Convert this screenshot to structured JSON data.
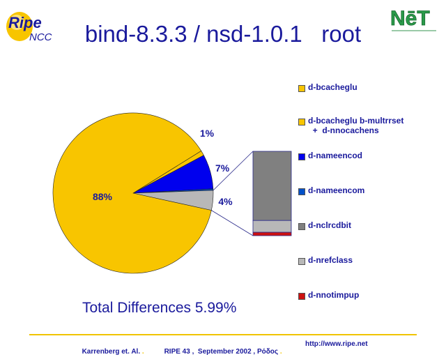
{
  "title": "bind-8.3.3 / nsd-1.0.1   root",
  "logos": {
    "ripe_text": "Ripe",
    "ncc_text": "NCC",
    "net_text": "NēT"
  },
  "colors": {
    "title": "#1a1a9c",
    "d-bcacheglu": "#f8c500",
    "d-bcacheglu-b-multrrset": "#f8c500",
    "d-nameencod": "#0000ee",
    "d-nameencom": "#0050c8",
    "d-nclrcdbit": "#808080",
    "d-nrefclass": "#b8b8b8",
    "d-nnotimpup": "#cc1111"
  },
  "legend": [
    {
      "label": "d-bcacheglu",
      "color": "#f8c500"
    },
    {
      "label": "d-bcacheglu b-multrrset\n  +  d-nnocachens",
      "color": "#f8c500"
    },
    {
      "label": "d-nameencod",
      "color": "#0000ee"
    },
    {
      "label": "d-nameencom",
      "color": "#0050c8"
    },
    {
      "label": "d-nclrcdbit",
      "color": "#808080"
    },
    {
      "label": "d-nrefclass",
      "color": "#b8b8b8"
    },
    {
      "label": "d-nnotimpup",
      "color": "#cc1111"
    }
  ],
  "chart_data": {
    "type": "pie",
    "title": "",
    "series": [
      {
        "name": "d-bcacheglu",
        "value": 88,
        "label": "88%"
      },
      {
        "name": "d-bcacheglu b-multrrset + d-nnocachens",
        "value": 1,
        "label": "1%"
      },
      {
        "name": "d-nameencod",
        "value": 7,
        "label": "7%"
      },
      {
        "name": "d-nameencom",
        "value": 0.3,
        "label": ""
      },
      {
        "name": "d-nrefclass + d-nclrcdbit + d-nnotimpup",
        "value": 4,
        "label": "4%"
      }
    ],
    "breakout_bar": {
      "of_slice": "4%",
      "segments": [
        {
          "name": "d-nclrcdbit",
          "value": 0.82
        },
        {
          "name": "d-nrefclass",
          "value": 0.14
        },
        {
          "name": "d-nnotimpup",
          "value": 0.04
        }
      ]
    }
  },
  "total_text": "Total Differences 5.99%",
  "footer": {
    "authors": "Karrenberg et. Al.",
    "event": "RIPE 43 ,  September 2002 , Ρόδος",
    "url": "http://www.ripe.net",
    "sep": "."
  }
}
